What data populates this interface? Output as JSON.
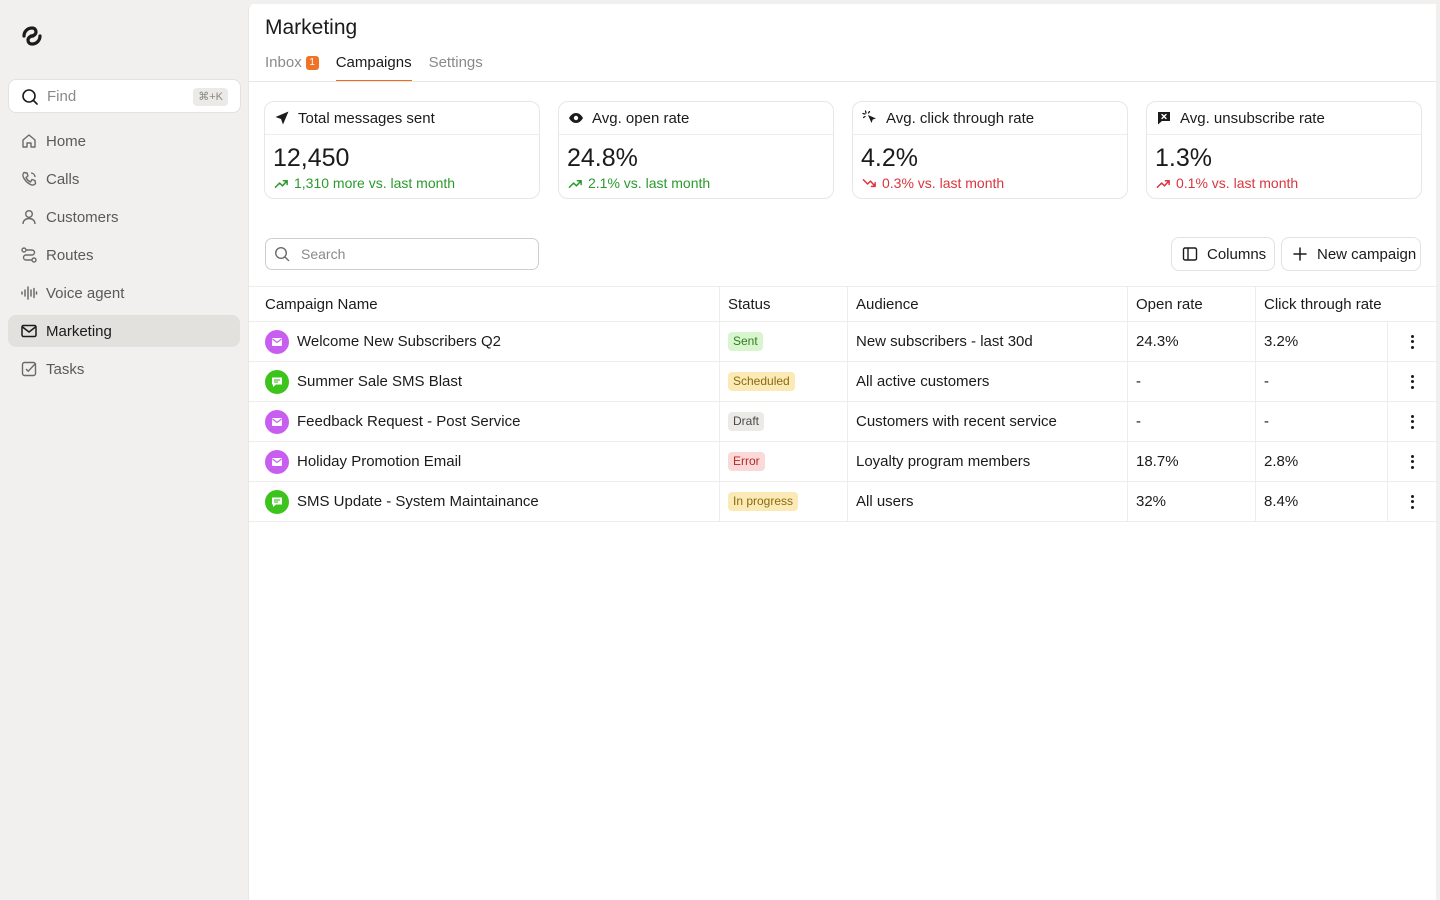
{
  "sidebar": {
    "find": {
      "label": "Find",
      "shortcut": "⌘+K"
    },
    "items": [
      {
        "label": "Home",
        "icon": "home-icon"
      },
      {
        "label": "Calls",
        "icon": "phone-icon"
      },
      {
        "label": "Customers",
        "icon": "user-icon"
      },
      {
        "label": "Routes",
        "icon": "route-icon"
      },
      {
        "label": "Voice agent",
        "icon": "waveform-icon"
      },
      {
        "label": "Marketing",
        "icon": "mail-icon",
        "active": true
      },
      {
        "label": "Tasks",
        "icon": "checkbox-icon"
      }
    ]
  },
  "header": {
    "title": "Marketing",
    "tabs": [
      {
        "label": "Inbox",
        "badge": "1"
      },
      {
        "label": "Campaigns",
        "active": true
      },
      {
        "label": "Settings"
      }
    ]
  },
  "stats": [
    {
      "title": "Total messages sent",
      "value": "12,450",
      "delta": "1,310 more vs. last month",
      "trend": "up",
      "color": "#2a9a2d"
    },
    {
      "title": "Avg. open rate",
      "value": "24.8%",
      "delta": "2.1% vs. last month",
      "trend": "up",
      "color": "#2a9a2d"
    },
    {
      "title": "Avg. click through rate",
      "value": "4.2%",
      "delta": "0.3% vs. last month",
      "trend": "down",
      "color": "#d9363e"
    },
    {
      "title": "Avg. unsubscribe rate",
      "value": "1.3%",
      "delta": "0.1% vs. last month",
      "trend": "up",
      "color": "#d9363e"
    }
  ],
  "toolbar": {
    "search_placeholder": "Search",
    "columns_label": "Columns",
    "new_campaign_label": "New campaign"
  },
  "table": {
    "headers": [
      "Campaign Name",
      "Status",
      "Audience",
      "Open rate",
      "Click through rate"
    ],
    "rows": [
      {
        "channel": "email",
        "name": "Welcome New Subscribers Q2",
        "status": "Sent",
        "audience": "New subscribers - last 30d",
        "open_rate": "24.3%",
        "ctr": "3.2%"
      },
      {
        "channel": "sms",
        "name": "Summer Sale SMS Blast",
        "status": "Scheduled",
        "audience": "All active customers",
        "open_rate": "-",
        "ctr": "-"
      },
      {
        "channel": "email",
        "name": "Feedback Request - Post Service",
        "status": "Draft",
        "audience": "Customers with recent service",
        "open_rate": "-",
        "ctr": "-"
      },
      {
        "channel": "email",
        "name": "Holiday Promotion Email",
        "status": "Error",
        "audience": "Loyalty program members",
        "open_rate": "18.7%",
        "ctr": "2.8%"
      },
      {
        "channel": "sms",
        "name": "SMS Update - System Maintainance",
        "status": "In progress",
        "audience": "All users",
        "open_rate": "32%",
        "ctr": "8.4%"
      }
    ]
  },
  "colors": {
    "accent": "#ef6b1c",
    "email": "#c75ef0",
    "sms": "#3cc31c",
    "status_sent": "#d8f5d0",
    "status_scheduled": "#fbeab6",
    "status_draft": "#ebeae7",
    "status_error": "#fbd9d9",
    "status_in_progress": "#fbeab6"
  }
}
